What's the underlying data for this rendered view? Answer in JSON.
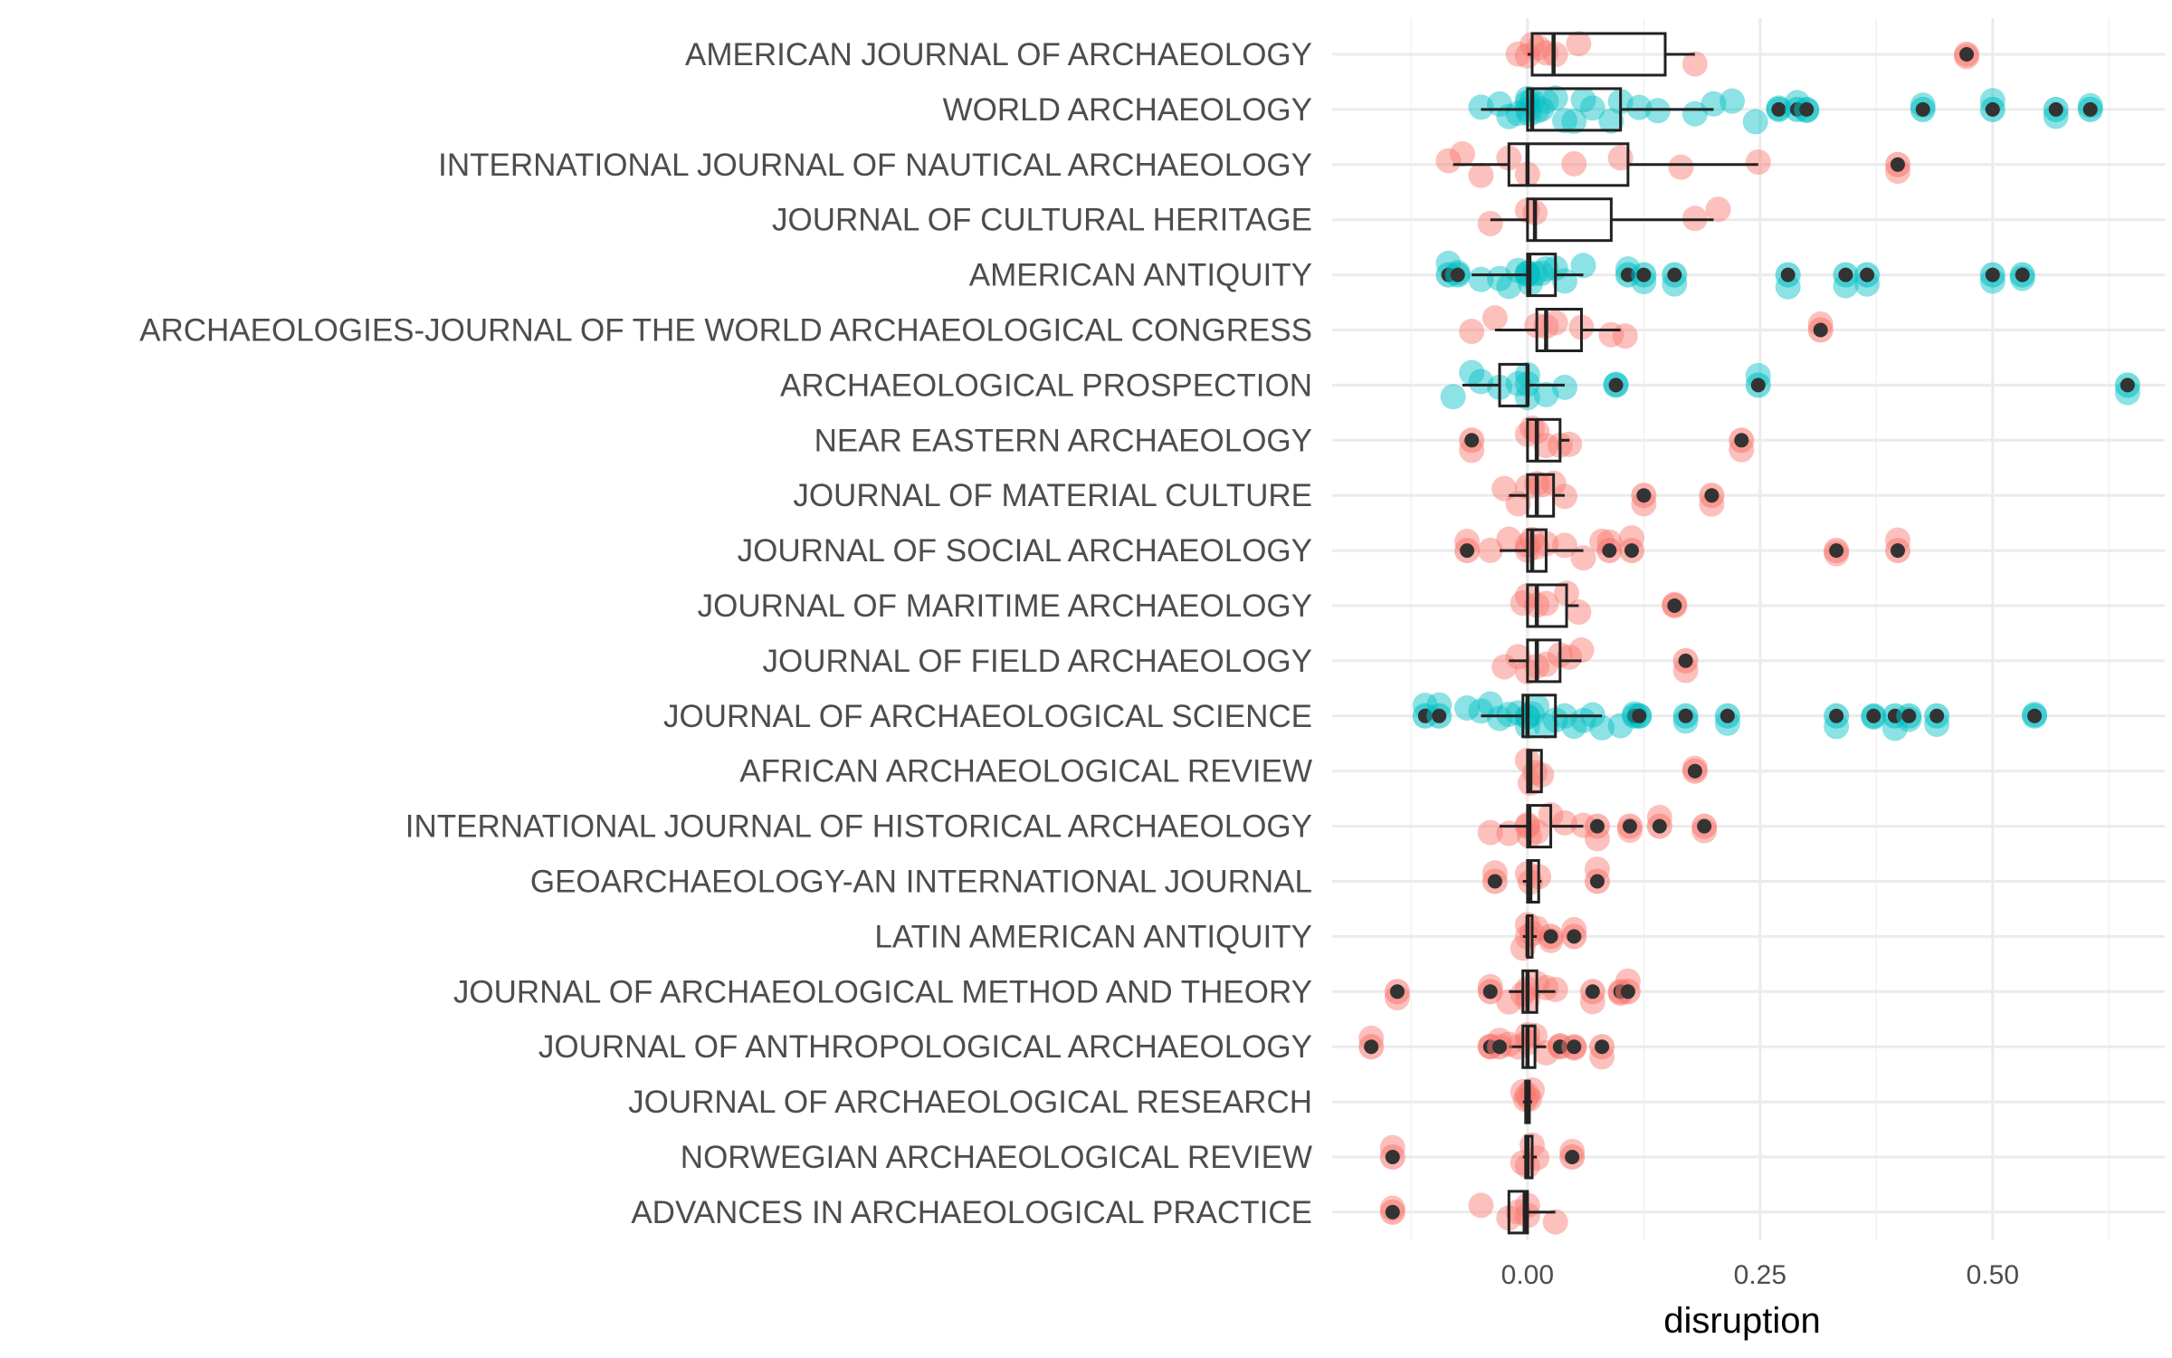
{
  "chart_data": {
    "type": "box-jitter",
    "xlabel": "disruption",
    "ylabel": "",
    "xlim": [
      -0.21,
      0.685
    ],
    "x_ticks": [
      0.0,
      0.25,
      0.5
    ],
    "x_tick_labels": [
      "0.00",
      "0.25",
      "0.50"
    ],
    "grid": true,
    "legend": "none",
    "colors": {
      "red_group": "#F8766D",
      "teal_group": "#00BFC4",
      "outlier": "#333333",
      "box": "#222222"
    },
    "categories": [
      "AMERICAN JOURNAL OF ARCHAEOLOGY",
      "WORLD ARCHAEOLOGY",
      "INTERNATIONAL JOURNAL OF NAUTICAL ARCHAEOLOGY",
      "JOURNAL OF CULTURAL HERITAGE",
      "AMERICAN ANTIQUITY",
      "ARCHAEOLOGIES-JOURNAL OF THE WORLD ARCHAEOLOGICAL CONGRESS",
      "ARCHAEOLOGICAL PROSPECTION",
      "NEAR EASTERN ARCHAEOLOGY",
      "JOURNAL OF MATERIAL CULTURE",
      "JOURNAL OF SOCIAL ARCHAEOLOGY",
      "JOURNAL OF MARITIME ARCHAEOLOGY",
      "JOURNAL OF FIELD ARCHAEOLOGY",
      "JOURNAL OF ARCHAEOLOGICAL SCIENCE",
      "AFRICAN ARCHAEOLOGICAL REVIEW",
      "INTERNATIONAL JOURNAL OF HISTORICAL ARCHAEOLOGY",
      "GEOARCHAEOLOGY-AN INTERNATIONAL JOURNAL",
      "LATIN AMERICAN ANTIQUITY",
      "JOURNAL OF ARCHAEOLOGICAL METHOD AND THEORY",
      "JOURNAL OF ANTHROPOLOGICAL ARCHAEOLOGY",
      "JOURNAL OF ARCHAEOLOGICAL RESEARCH",
      "NORWEGIAN ARCHAEOLOGICAL REVIEW",
      "ADVANCES IN ARCHAEOLOGICAL PRACTICE"
    ],
    "series": [
      {
        "category": "AMERICAN JOURNAL OF ARCHAEOLOGY",
        "color_group": "red",
        "box": {
          "lower_whisker": 0.0,
          "q1": 0.005,
          "median": 0.028,
          "q3": 0.148,
          "upper_whisker": 0.18
        },
        "points": [
          -0.01,
          0.0,
          0.005,
          0.012,
          0.02,
          0.03,
          0.055,
          0.18,
          0.472
        ],
        "outliers": [
          0.472
        ]
      },
      {
        "category": "WORLD ARCHAEOLOGY",
        "color_group": "teal",
        "box": {
          "lower_whisker": -0.05,
          "q1": 0.0,
          "median": 0.005,
          "q3": 0.1,
          "upper_whisker": 0.2
        },
        "points": [
          -0.05,
          -0.03,
          -0.02,
          -0.01,
          0.0,
          0.0,
          0.0,
          0.002,
          0.005,
          0.01,
          0.015,
          0.02,
          0.03,
          0.04,
          0.05,
          0.06,
          0.07,
          0.09,
          0.1,
          0.12,
          0.14,
          0.18,
          0.2,
          0.22,
          0.245,
          0.27,
          0.29,
          0.3,
          0.425,
          0.5,
          0.568,
          0.605
        ],
        "outliers": [
          0.27,
          0.29,
          0.3,
          0.425,
          0.5,
          0.568,
          0.605
        ]
      },
      {
        "category": "INTERNATIONAL JOURNAL OF NAUTICAL ARCHAEOLOGY",
        "color_group": "red",
        "box": {
          "lower_whisker": -0.08,
          "q1": -0.02,
          "median": 0.0,
          "q3": 0.108,
          "upper_whisker": 0.248
        },
        "points": [
          -0.085,
          -0.07,
          -0.05,
          -0.02,
          0.0,
          0.05,
          0.1,
          0.165,
          0.248,
          0.398
        ],
        "outliers": [
          0.398
        ]
      },
      {
        "category": "JOURNAL OF CULTURAL HERITAGE",
        "color_group": "red",
        "box": {
          "lower_whisker": -0.04,
          "q1": 0.0,
          "median": 0.008,
          "q3": 0.09,
          "upper_whisker": 0.2
        },
        "points": [
          -0.04,
          0.0,
          0.008,
          0.18,
          0.205
        ],
        "outliers": []
      },
      {
        "category": "AMERICAN ANTIQUITY",
        "color_group": "teal",
        "box": {
          "lower_whisker": -0.06,
          "q1": 0.0,
          "median": 0.002,
          "q3": 0.03,
          "upper_whisker": 0.06
        },
        "points": [
          -0.085,
          -0.075,
          -0.05,
          -0.03,
          -0.02,
          -0.01,
          0.0,
          0.0,
          0.0,
          0.003,
          0.008,
          0.015,
          0.02,
          0.03,
          0.04,
          0.06,
          0.108,
          0.125,
          0.158,
          0.28,
          0.342,
          0.365,
          0.5,
          0.532
        ],
        "outliers": [
          -0.085,
          -0.075,
          0.108,
          0.125,
          0.158,
          0.28,
          0.342,
          0.365,
          0.5,
          0.532
        ]
      },
      {
        "category": "ARCHAEOLOGIES-JOURNAL OF THE WORLD ARCHAEOLOGICAL CONGRESS",
        "color_group": "red",
        "box": {
          "lower_whisker": -0.035,
          "q1": 0.01,
          "median": 0.02,
          "q3": 0.058,
          "upper_whisker": 0.1
        },
        "points": [
          -0.06,
          -0.035,
          0.01,
          0.02,
          0.03,
          0.058,
          0.09,
          0.105,
          0.315
        ],
        "outliers": [
          0.315
        ]
      },
      {
        "category": "ARCHAEOLOGICAL PROSPECTION",
        "color_group": "teal",
        "box": {
          "lower_whisker": -0.07,
          "q1": -0.03,
          "median": 0.0,
          "q3": 0.0,
          "upper_whisker": 0.04
        },
        "points": [
          -0.08,
          -0.06,
          -0.05,
          -0.03,
          -0.01,
          0.0,
          0.0,
          0.0,
          0.02,
          0.04,
          0.095,
          0.248,
          0.645
        ],
        "outliers": [
          0.095,
          0.248,
          0.645
        ]
      },
      {
        "category": "NEAR EASTERN ARCHAEOLOGY",
        "color_group": "red",
        "box": {
          "lower_whisker": 0.0,
          "q1": 0.0,
          "median": 0.01,
          "q3": 0.035,
          "upper_whisker": 0.045
        },
        "points": [
          -0.06,
          0.0,
          0.005,
          0.01,
          0.02,
          0.035,
          0.045,
          0.23
        ],
        "outliers": [
          -0.06,
          0.23
        ]
      },
      {
        "category": "JOURNAL OF MATERIAL CULTURE",
        "color_group": "red",
        "box": {
          "lower_whisker": -0.02,
          "q1": 0.0,
          "median": 0.01,
          "q3": 0.028,
          "upper_whisker": 0.04
        },
        "points": [
          -0.025,
          -0.01,
          0.0,
          0.01,
          0.015,
          0.028,
          0.04,
          0.125,
          0.198
        ],
        "outliers": [
          0.125,
          0.198
        ]
      },
      {
        "category": "JOURNAL OF SOCIAL ARCHAEOLOGY",
        "color_group": "red",
        "box": {
          "lower_whisker": -0.03,
          "q1": 0.0,
          "median": 0.005,
          "q3": 0.02,
          "upper_whisker": 0.06
        },
        "points": [
          -0.065,
          -0.04,
          -0.02,
          0.0,
          0.0,
          0.005,
          0.01,
          0.02,
          0.04,
          0.06,
          0.08,
          0.088,
          0.112,
          0.332,
          0.398
        ],
        "outliers": [
          -0.065,
          0.088,
          0.112,
          0.332,
          0.398
        ]
      },
      {
        "category": "JOURNAL OF MARITIME ARCHAEOLOGY",
        "color_group": "red",
        "box": {
          "lower_whisker": 0.0,
          "q1": 0.0,
          "median": 0.01,
          "q3": 0.042,
          "upper_whisker": 0.055
        },
        "points": [
          -0.005,
          0.0,
          0.01,
          0.02,
          0.042,
          0.055,
          0.158
        ],
        "outliers": [
          0.158
        ]
      },
      {
        "category": "JOURNAL OF FIELD ARCHAEOLOGY",
        "color_group": "red",
        "box": {
          "lower_whisker": -0.02,
          "q1": 0.0,
          "median": 0.01,
          "q3": 0.035,
          "upper_whisker": 0.058
        },
        "points": [
          -0.025,
          -0.01,
          0.0,
          0.01,
          0.02,
          0.035,
          0.045,
          0.058,
          0.17
        ],
        "outliers": [
          0.17
        ]
      },
      {
        "category": "JOURNAL OF ARCHAEOLOGICAL SCIENCE",
        "color_group": "teal",
        "box": {
          "lower_whisker": -0.05,
          "q1": -0.005,
          "median": 0.0,
          "q3": 0.03,
          "upper_whisker": 0.08
        },
        "points": [
          -0.11,
          -0.095,
          -0.065,
          -0.05,
          -0.04,
          -0.03,
          -0.02,
          -0.01,
          0.0,
          0.0,
          0.0,
          0.005,
          0.01,
          0.02,
          0.03,
          0.04,
          0.05,
          0.06,
          0.07,
          0.08,
          0.1,
          0.115,
          0.12,
          0.17,
          0.215,
          0.332,
          0.372,
          0.395,
          0.41,
          0.44,
          0.545
        ],
        "outliers": [
          -0.11,
          -0.095,
          0.115,
          0.12,
          0.17,
          0.215,
          0.332,
          0.372,
          0.395,
          0.41,
          0.44,
          0.545
        ]
      },
      {
        "category": "AFRICAN ARCHAEOLOGICAL REVIEW",
        "color_group": "red",
        "box": {
          "lower_whisker": 0.0,
          "q1": 0.0,
          "median": 0.003,
          "q3": 0.015,
          "upper_whisker": 0.015
        },
        "points": [
          0.0,
          0.003,
          0.008,
          0.015,
          0.18
        ],
        "outliers": [
          0.18
        ]
      },
      {
        "category": "INTERNATIONAL JOURNAL OF HISTORICAL ARCHAEOLOGY",
        "color_group": "red",
        "box": {
          "lower_whisker": -0.03,
          "q1": 0.0,
          "median": 0.002,
          "q3": 0.025,
          "upper_whisker": 0.06
        },
        "points": [
          -0.04,
          -0.02,
          0.0,
          0.0,
          0.002,
          0.01,
          0.025,
          0.04,
          0.06,
          0.075,
          0.11,
          0.142,
          0.19
        ],
        "outliers": [
          0.075,
          0.11,
          0.142,
          0.19
        ]
      },
      {
        "category": "GEOARCHAEOLOGY-AN INTERNATIONAL JOURNAL",
        "color_group": "red",
        "box": {
          "lower_whisker": -0.005,
          "q1": 0.0,
          "median": 0.003,
          "q3": 0.012,
          "upper_whisker": 0.015
        },
        "points": [
          -0.035,
          0.0,
          0.003,
          0.012,
          0.075
        ],
        "outliers": [
          -0.035,
          0.075
        ]
      },
      {
        "category": "LATIN AMERICAN ANTIQUITY",
        "color_group": "red",
        "box": {
          "lower_whisker": -0.005,
          "q1": 0.0,
          "median": 0.0,
          "q3": 0.005,
          "upper_whisker": 0.01
        },
        "points": [
          -0.005,
          0.0,
          0.0,
          0.005,
          0.01,
          0.025,
          0.05
        ],
        "outliers": [
          0.025,
          0.05
        ]
      },
      {
        "category": "JOURNAL OF ARCHAEOLOGICAL METHOD AND THEORY",
        "color_group": "red",
        "box": {
          "lower_whisker": -0.02,
          "q1": -0.005,
          "median": 0.0,
          "q3": 0.01,
          "upper_whisker": 0.03
        },
        "points": [
          -0.14,
          -0.04,
          -0.02,
          -0.005,
          0.0,
          0.0,
          0.01,
          0.02,
          0.03,
          0.07,
          0.1,
          0.108
        ],
        "outliers": [
          -0.14,
          -0.04,
          0.07,
          0.1,
          0.108
        ]
      },
      {
        "category": "JOURNAL OF ANTHROPOLOGICAL ARCHAEOLOGY",
        "color_group": "red",
        "box": {
          "lower_whisker": -0.02,
          "q1": -0.005,
          "median": 0.0,
          "q3": 0.008,
          "upper_whisker": 0.02
        },
        "points": [
          -0.168,
          -0.04,
          -0.03,
          -0.02,
          -0.01,
          0.0,
          0.0,
          0.008,
          0.02,
          0.035,
          0.05,
          0.08
        ],
        "outliers": [
          -0.168,
          -0.04,
          -0.03,
          0.035,
          0.05,
          0.08
        ]
      },
      {
        "category": "JOURNAL OF ARCHAEOLOGICAL RESEARCH",
        "color_group": "red",
        "box": {
          "lower_whisker": -0.005,
          "q1": -0.002,
          "median": 0.0,
          "q3": 0.002,
          "upper_whisker": 0.005
        },
        "points": [
          -0.005,
          -0.002,
          0.0,
          0.002,
          0.005
        ],
        "outliers": []
      },
      {
        "category": "NORWEGIAN ARCHAEOLOGICAL REVIEW",
        "color_group": "red",
        "box": {
          "lower_whisker": -0.005,
          "q1": -0.002,
          "median": 0.0,
          "q3": 0.005,
          "upper_whisker": 0.01
        },
        "points": [
          -0.145,
          -0.005,
          0.0,
          0.005,
          0.01,
          0.048
        ],
        "outliers": [
          -0.145,
          0.048
        ]
      },
      {
        "category": "ADVANCES IN ARCHAEOLOGICAL PRACTICE",
        "color_group": "red",
        "box": {
          "lower_whisker": -0.02,
          "q1": -0.02,
          "median": -0.003,
          "q3": 0.0,
          "upper_whisker": 0.03
        },
        "points": [
          -0.145,
          -0.05,
          -0.02,
          -0.01,
          0.0,
          0.0,
          0.03
        ],
        "outliers": [
          -0.145
        ]
      }
    ]
  }
}
